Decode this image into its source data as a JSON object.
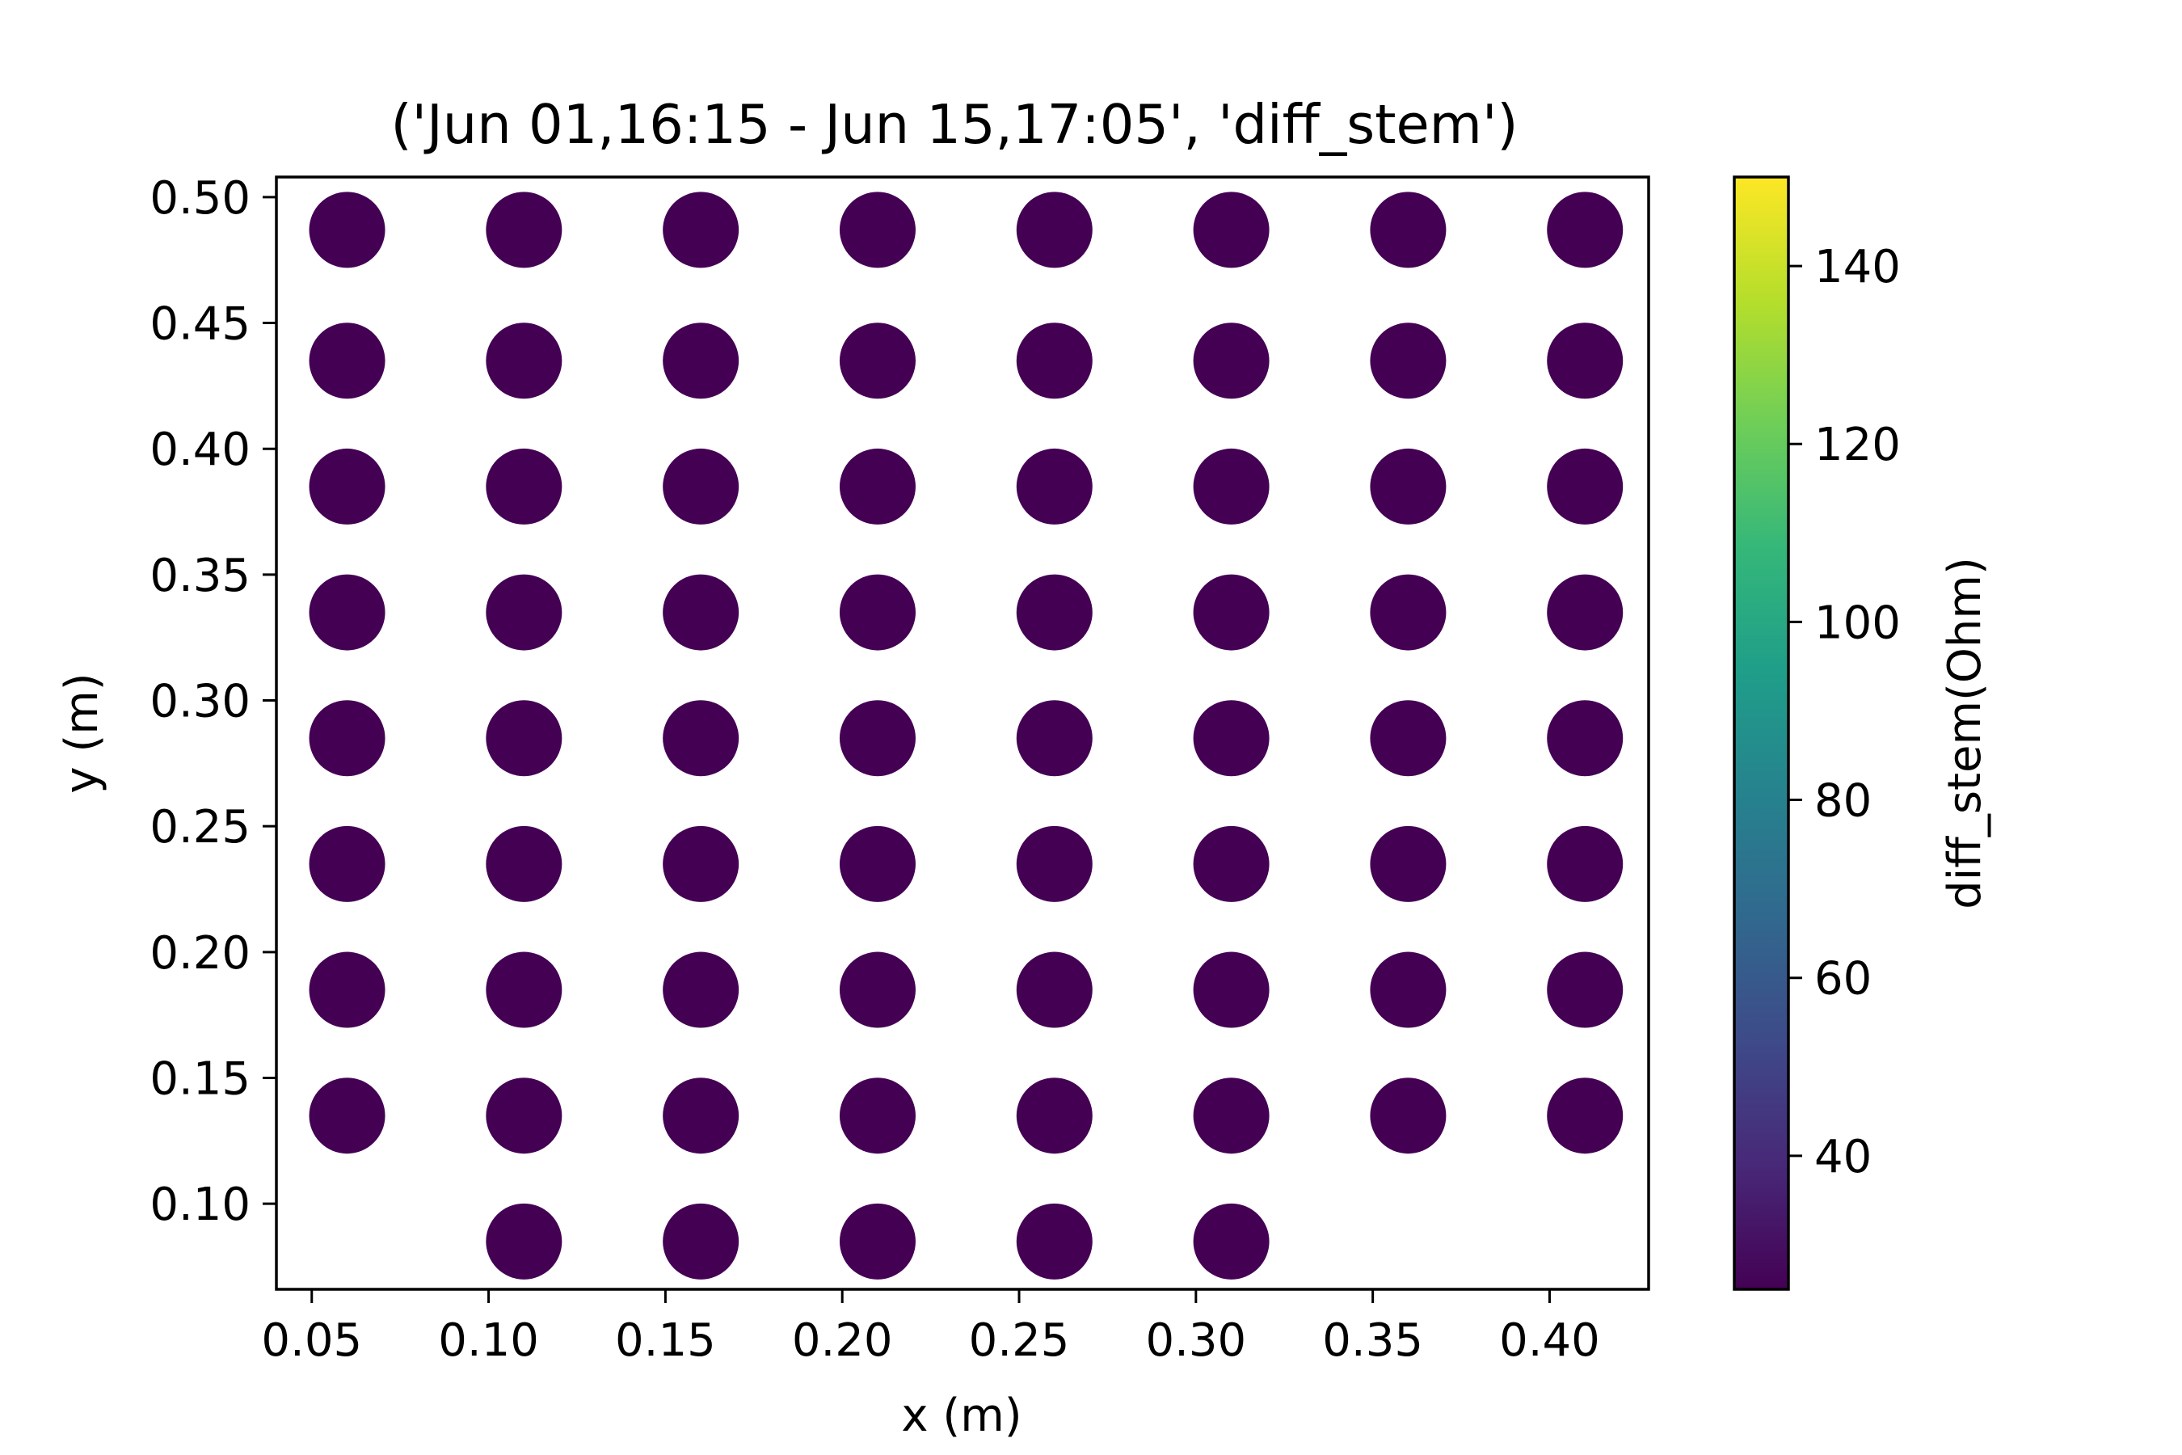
{
  "chart_data": {
    "type": "scatter",
    "title": "('Jun 01,16:15 - Jun 15,17:05', 'diff_stem')",
    "xlabel": "x (m)",
    "ylabel": "y (m)",
    "xlim": [
      0.04,
      0.428
    ],
    "ylim": [
      0.066,
      0.508
    ],
    "xticks": [
      "0.05",
      "0.10",
      "0.15",
      "0.20",
      "0.25",
      "0.30",
      "0.35",
      "0.40"
    ],
    "yticks": [
      "0.10",
      "0.15",
      "0.20",
      "0.25",
      "0.30",
      "0.35",
      "0.40",
      "0.45",
      "0.50"
    ],
    "grid": false,
    "marker_color": "#440154",
    "points": [
      {
        "x": 0.06,
        "y": 0.487
      },
      {
        "x": 0.11,
        "y": 0.487
      },
      {
        "x": 0.16,
        "y": 0.487
      },
      {
        "x": 0.21,
        "y": 0.487
      },
      {
        "x": 0.26,
        "y": 0.487
      },
      {
        "x": 0.31,
        "y": 0.487
      },
      {
        "x": 0.36,
        "y": 0.487
      },
      {
        "x": 0.41,
        "y": 0.487
      },
      {
        "x": 0.06,
        "y": 0.435
      },
      {
        "x": 0.11,
        "y": 0.435
      },
      {
        "x": 0.16,
        "y": 0.435
      },
      {
        "x": 0.21,
        "y": 0.435
      },
      {
        "x": 0.26,
        "y": 0.435
      },
      {
        "x": 0.31,
        "y": 0.435
      },
      {
        "x": 0.36,
        "y": 0.435
      },
      {
        "x": 0.41,
        "y": 0.435
      },
      {
        "x": 0.06,
        "y": 0.385
      },
      {
        "x": 0.11,
        "y": 0.385
      },
      {
        "x": 0.16,
        "y": 0.385
      },
      {
        "x": 0.21,
        "y": 0.385
      },
      {
        "x": 0.26,
        "y": 0.385
      },
      {
        "x": 0.31,
        "y": 0.385
      },
      {
        "x": 0.36,
        "y": 0.385
      },
      {
        "x": 0.41,
        "y": 0.385
      },
      {
        "x": 0.06,
        "y": 0.335
      },
      {
        "x": 0.11,
        "y": 0.335
      },
      {
        "x": 0.16,
        "y": 0.335
      },
      {
        "x": 0.21,
        "y": 0.335
      },
      {
        "x": 0.26,
        "y": 0.335
      },
      {
        "x": 0.31,
        "y": 0.335
      },
      {
        "x": 0.36,
        "y": 0.335
      },
      {
        "x": 0.41,
        "y": 0.335
      },
      {
        "x": 0.06,
        "y": 0.285
      },
      {
        "x": 0.11,
        "y": 0.285
      },
      {
        "x": 0.16,
        "y": 0.285
      },
      {
        "x": 0.21,
        "y": 0.285
      },
      {
        "x": 0.26,
        "y": 0.285
      },
      {
        "x": 0.31,
        "y": 0.285
      },
      {
        "x": 0.36,
        "y": 0.285
      },
      {
        "x": 0.41,
        "y": 0.285
      },
      {
        "x": 0.06,
        "y": 0.235
      },
      {
        "x": 0.11,
        "y": 0.235
      },
      {
        "x": 0.16,
        "y": 0.235
      },
      {
        "x": 0.21,
        "y": 0.235
      },
      {
        "x": 0.26,
        "y": 0.235
      },
      {
        "x": 0.31,
        "y": 0.235
      },
      {
        "x": 0.36,
        "y": 0.235
      },
      {
        "x": 0.41,
        "y": 0.235
      },
      {
        "x": 0.06,
        "y": 0.185
      },
      {
        "x": 0.11,
        "y": 0.185
      },
      {
        "x": 0.16,
        "y": 0.185
      },
      {
        "x": 0.21,
        "y": 0.185
      },
      {
        "x": 0.26,
        "y": 0.185
      },
      {
        "x": 0.31,
        "y": 0.185
      },
      {
        "x": 0.36,
        "y": 0.185
      },
      {
        "x": 0.41,
        "y": 0.185
      },
      {
        "x": 0.06,
        "y": 0.135
      },
      {
        "x": 0.11,
        "y": 0.135
      },
      {
        "x": 0.16,
        "y": 0.135
      },
      {
        "x": 0.21,
        "y": 0.135
      },
      {
        "x": 0.26,
        "y": 0.135
      },
      {
        "x": 0.31,
        "y": 0.135
      },
      {
        "x": 0.36,
        "y": 0.135
      },
      {
        "x": 0.41,
        "y": 0.135
      },
      {
        "x": 0.11,
        "y": 0.085
      },
      {
        "x": 0.16,
        "y": 0.085
      },
      {
        "x": 0.21,
        "y": 0.085
      },
      {
        "x": 0.26,
        "y": 0.085
      },
      {
        "x": 0.31,
        "y": 0.085
      }
    ],
    "colorbar": {
      "label": "diff_stem(Ohm)",
      "range": [
        25,
        150
      ],
      "ticks": [
        "40",
        "60",
        "80",
        "100",
        "120",
        "140"
      ],
      "colormap": "viridis",
      "colormap_stops": [
        "#440154",
        "#482878",
        "#3e4a89",
        "#31688e",
        "#26828e",
        "#1f9e89",
        "#35b779",
        "#6ece58",
        "#b5de2b",
        "#fde725"
      ]
    }
  }
}
